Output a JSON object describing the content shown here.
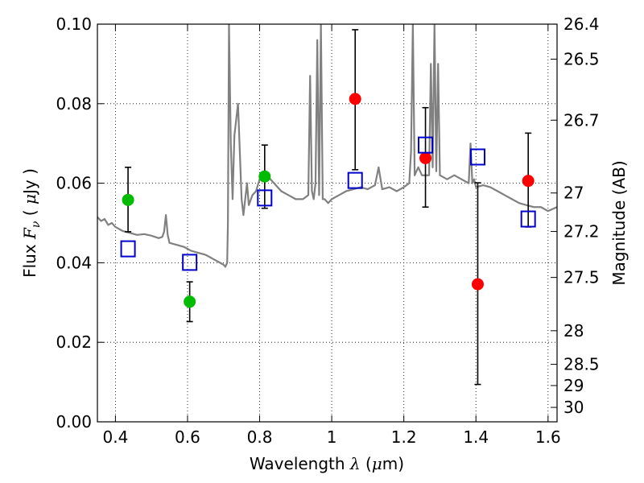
{
  "chart_data": {
    "type": "scatter",
    "xlabel": {
      "pre": "Wavelength  ",
      "sym": "λ",
      "post": " (",
      "mu": "μ",
      "unit": "m)"
    },
    "ylabel": {
      "pre": "Flux  ",
      "sym": "F",
      "sub": "ν",
      "post": "  ( ",
      "mu": "μ",
      "unit": "Jy )"
    },
    "y2label": "Magnitude (AB)",
    "xlim": [
      0.35,
      1.625
    ],
    "ylim": [
      0,
      0.1
    ],
    "grid": true,
    "x_ticks": [
      0.4,
      0.6,
      0.8,
      1.0,
      1.2,
      1.4,
      1.6
    ],
    "x_tick_labels": [
      "0.4",
      "0.6",
      "0.8",
      "1",
      "1.2",
      "1.4",
      "1.6"
    ],
    "y_ticks": [
      0,
      0.02,
      0.04,
      0.06,
      0.08,
      0.1
    ],
    "y_tick_labels": [
      "0.00",
      "0.02",
      "0.04",
      "0.06",
      "0.08",
      "0.10"
    ],
    "mag_ticks": [
      26.4,
      26.5,
      26.7,
      27,
      27.2,
      27.5,
      28,
      28.5,
      29,
      30
    ],
    "mag_tick_labels": [
      "26.4",
      "26.5",
      "26.7",
      "27",
      "27.2",
      "27.5",
      "28",
      "28.5",
      "29",
      "30"
    ],
    "series": [
      {
        "marker": "circle",
        "color": "#00bb00",
        "points": [
          {
            "x": 0.435,
            "y": 0.0558,
            "err_low": 0.008,
            "err_high": 0.0082
          },
          {
            "x": 0.606,
            "y": 0.0302,
            "err_low": 0.005,
            "err_high": 0.005
          },
          {
            "x": 0.814,
            "y": 0.0617,
            "err_low": 0.008,
            "err_high": 0.0079
          }
        ]
      },
      {
        "marker": "circle",
        "color": "#ff0000",
        "points": [
          {
            "x": 1.065,
            "y": 0.0812,
            "err_low": 0.0178,
            "err_high": 0.0174
          },
          {
            "x": 1.26,
            "y": 0.0663,
            "err_low": 0.0123,
            "err_high": 0.0127
          },
          {
            "x": 1.405,
            "y": 0.0346,
            "err_low": 0.0252,
            "err_high": 0.0255
          },
          {
            "x": 1.545,
            "y": 0.0606,
            "err_low": 0.0116,
            "err_high": 0.012
          }
        ]
      },
      {
        "marker": "square",
        "color": "#0000cc",
        "points": [
          {
            "x": 0.435,
            "y": 0.0435
          },
          {
            "x": 0.606,
            "y": 0.0401
          },
          {
            "x": 0.814,
            "y": 0.0563
          },
          {
            "x": 1.065,
            "y": 0.0607
          },
          {
            "x": 1.26,
            "y": 0.0696
          },
          {
            "x": 1.405,
            "y": 0.0666
          },
          {
            "x": 1.545,
            "y": 0.051
          }
        ]
      }
    ],
    "model_spectrum": {
      "color": "#808080",
      "x": [
        0.35,
        0.36,
        0.37,
        0.38,
        0.39,
        0.4,
        0.42,
        0.44,
        0.46,
        0.48,
        0.5,
        0.52,
        0.53,
        0.535,
        0.54,
        0.545,
        0.55,
        0.57,
        0.59,
        0.61,
        0.63,
        0.65,
        0.67,
        0.69,
        0.7,
        0.705,
        0.71,
        0.712,
        0.715,
        0.72,
        0.725,
        0.73,
        0.74,
        0.75,
        0.755,
        0.76,
        0.765,
        0.77,
        0.78,
        0.79,
        0.8,
        0.82,
        0.84,
        0.86,
        0.88,
        0.9,
        0.92,
        0.935,
        0.94,
        0.945,
        0.95,
        0.955,
        0.96,
        0.965,
        0.97,
        0.975,
        0.98,
        0.99,
        1.0,
        1.02,
        1.04,
        1.06,
        1.08,
        1.1,
        1.12,
        1.13,
        1.14,
        1.16,
        1.18,
        1.2,
        1.215,
        1.22,
        1.225,
        1.23,
        1.24,
        1.25,
        1.27,
        1.275,
        1.28,
        1.285,
        1.29,
        1.295,
        1.3,
        1.32,
        1.34,
        1.36,
        1.38,
        1.385,
        1.39,
        1.395,
        1.4,
        1.42,
        1.44,
        1.46,
        1.48,
        1.5,
        1.52,
        1.54,
        1.56,
        1.58,
        1.6,
        1.625
      ],
      "y": [
        0.0515,
        0.0505,
        0.051,
        0.0495,
        0.05,
        0.049,
        0.048,
        0.0475,
        0.047,
        0.0472,
        0.0468,
        0.0462,
        0.0465,
        0.0478,
        0.052,
        0.047,
        0.045,
        0.0445,
        0.044,
        0.043,
        0.0425,
        0.042,
        0.041,
        0.04,
        0.0395,
        0.039,
        0.04,
        0.05,
        0.1,
        0.07,
        0.056,
        0.072,
        0.08,
        0.056,
        0.052,
        0.056,
        0.06,
        0.0545,
        0.057,
        0.058,
        0.061,
        0.062,
        0.06,
        0.058,
        0.057,
        0.056,
        0.056,
        0.057,
        0.087,
        0.058,
        0.056,
        0.06,
        0.096,
        0.057,
        0.1,
        0.056,
        0.056,
        0.055,
        0.056,
        0.057,
        0.058,
        0.0585,
        0.059,
        0.0585,
        0.0595,
        0.064,
        0.0585,
        0.059,
        0.058,
        0.059,
        0.06,
        0.068,
        0.1,
        0.062,
        0.064,
        0.062,
        0.062,
        0.09,
        0.064,
        0.1,
        0.063,
        0.09,
        0.062,
        0.061,
        0.062,
        0.061,
        0.06,
        0.07,
        0.06,
        0.061,
        0.059,
        0.0595,
        0.059,
        0.058,
        0.057,
        0.056,
        0.055,
        0.0545,
        0.054,
        0.054,
        0.053,
        0.054
      ]
    }
  }
}
